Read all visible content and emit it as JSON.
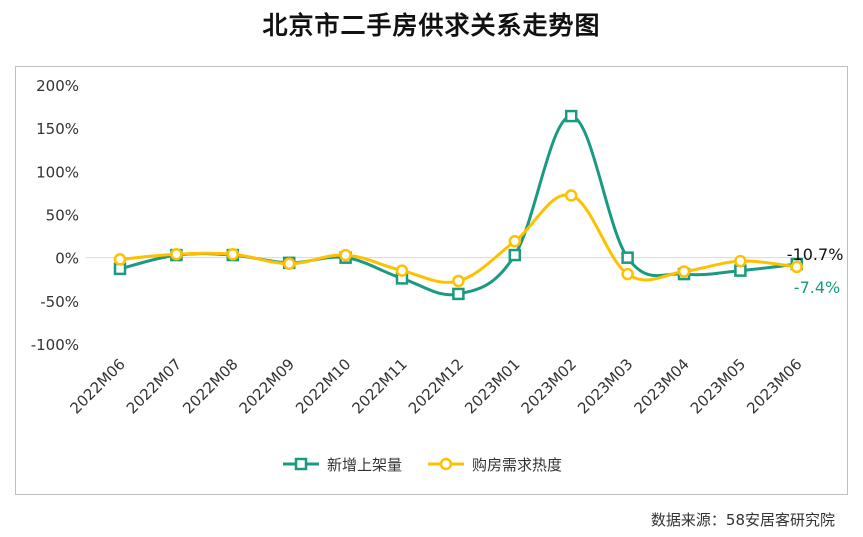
{
  "title": "北京市二手房供求关系走势图",
  "source": "数据来源：58安居客研究院",
  "colors": {
    "supply": "#1a9a80",
    "demand": "#ffc000",
    "grid": "#d9d9d9"
  },
  "chart_data": {
    "type": "line",
    "title": "北京市二手房供求关系走势图",
    "categories": [
      "2022M06",
      "2022M07",
      "2022M08",
      "2022M09",
      "2022M10",
      "2022M11",
      "2022M12",
      "2023M01",
      "2023M02",
      "2023M03",
      "2023M04",
      "2023M05",
      "2023M06"
    ],
    "ylim": [
      -100,
      200
    ],
    "yticks": [
      -100,
      -50,
      0,
      50,
      100,
      150,
      200
    ],
    "ytick_labels": [
      "-100%",
      "-50%",
      "0%",
      "50%",
      "100%",
      "150%",
      "200%"
    ],
    "grid": "zero-line only",
    "legend": "bottom",
    "series": [
      {
        "name": "新增上架量",
        "marker": "square",
        "values": [
          -13,
          3,
          3,
          -6,
          0,
          -24,
          -42,
          3,
          164,
          0,
          -19,
          -15,
          -7.4
        ]
      },
      {
        "name": "购房需求热度",
        "marker": "circle",
        "values": [
          -2,
          4,
          4,
          -7,
          3,
          -15,
          -27,
          19,
          72,
          -19,
          -16,
          -4,
          -10.7
        ]
      }
    ],
    "annotations": [
      {
        "series": "购房需求热度",
        "text": "-10.7%"
      },
      {
        "series": "新增上架量",
        "text": "-7.4%"
      }
    ]
  }
}
